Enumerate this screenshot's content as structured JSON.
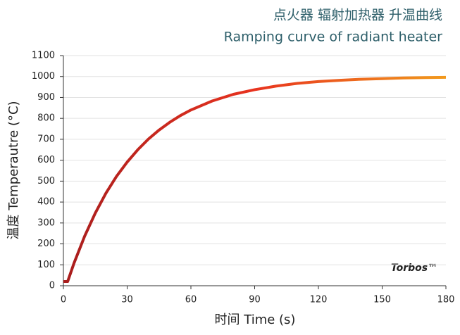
{
  "chart_data": {
    "type": "line",
    "title": "点火器 辐射加热器 升温曲线",
    "subtitle": "Ramping curve of radiant heater",
    "x_label": "时间 Time (s)",
    "y_label": "温度 Temperautre (°C)",
    "annotation": "Torbos™",
    "x": [
      0,
      2,
      5,
      10,
      15,
      20,
      25,
      30,
      35,
      40,
      45,
      50,
      55,
      60,
      70,
      80,
      90,
      100,
      110,
      120,
      130,
      140,
      150,
      160,
      170,
      180
    ],
    "series": [
      {
        "values": [
          20,
          20,
          108,
          237,
          347,
          442,
          523,
          591,
          650,
          701,
          744,
          781,
          813,
          840,
          883,
          915,
          937,
          954,
          967,
          976,
          982,
          987,
          990,
          993,
          995,
          996
        ],
        "colors": [
          "#a81d1d",
          "#e8331f",
          "#f29a1c"
        ]
      }
    ],
    "xlim": [
      0,
      180
    ],
    "xticks": [
      0,
      30,
      60,
      90,
      120,
      150,
      180
    ],
    "ylim": [
      0,
      1100
    ],
    "yticks": [
      0,
      100,
      200,
      300,
      400,
      500,
      600,
      700,
      800,
      900,
      1000,
      1100
    ],
    "grid": true
  }
}
